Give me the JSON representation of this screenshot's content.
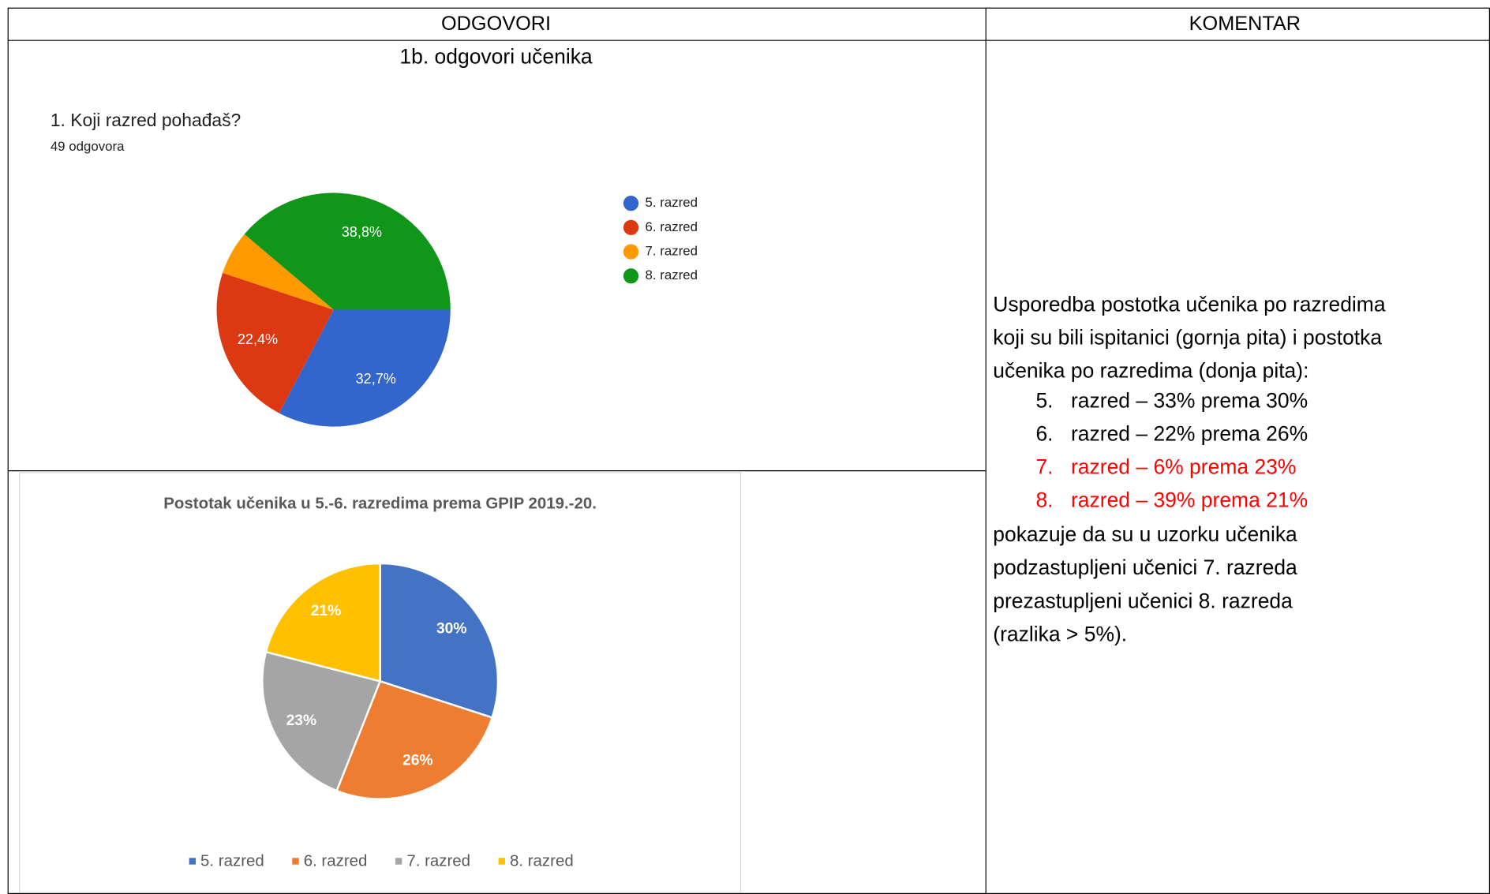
{
  "table": {
    "headers": [
      "ODGOVORI",
      "KOMENTAR"
    ]
  },
  "section_title": "1b. odgovori učenika",
  "chart_data": [
    {
      "type": "pie",
      "title": "1. Koji razred pohađaš?",
      "subtitle": "49 odgovora",
      "categories": [
        "5. razred",
        "6. razred",
        "7. razred",
        "8. razred"
      ],
      "values": [
        32.7,
        22.4,
        6.1,
        38.8
      ],
      "value_labels": [
        "32,7%",
        "22,4%",
        null,
        "38,8%"
      ],
      "colors": [
        "#3366cc",
        "#dc3912",
        "#ff9900",
        "#109618"
      ],
      "legend": "right"
    },
    {
      "type": "pie",
      "title": "Postotak učenika u 5.-6. razredima prema GPIP 2019.-20.",
      "categories": [
        "5. razred",
        "6. razred",
        "7. razred",
        "8. razred"
      ],
      "values": [
        30,
        26,
        23,
        21
      ],
      "value_labels": [
        "30%",
        "26%",
        "23%",
        "21%"
      ],
      "colors": [
        "#4472c4",
        "#ed7d31",
        "#a5a5a5",
        "#ffc000"
      ],
      "legend": "bottom"
    }
  ],
  "comment": {
    "intro_lines": [
      "Usporedba postotka učenika po razredima",
      "koji su bili ispitanici (gornja pita) i postotka",
      "učenika po razredima (donja pita):"
    ],
    "items": [
      {
        "number": "5.",
        "text": "razred – 33% prema 30%",
        "highlight": false
      },
      {
        "number": "6.",
        "text": "razred – 22% prema 26%",
        "highlight": false
      },
      {
        "number": "7.",
        "text": "razred – 6% prema 23%",
        "highlight": true
      },
      {
        "number": "8.",
        "text": "razred – 39% prema 21%",
        "highlight": true
      }
    ],
    "outro_lines": [
      "pokazuje da su u uzorku učenika",
      "podzastupljeni učenici 7. razreda",
      "prezastupljeni učenici 8. razreda",
      "(razlika > 5%)."
    ],
    "highlight_color": "#ff0000"
  }
}
